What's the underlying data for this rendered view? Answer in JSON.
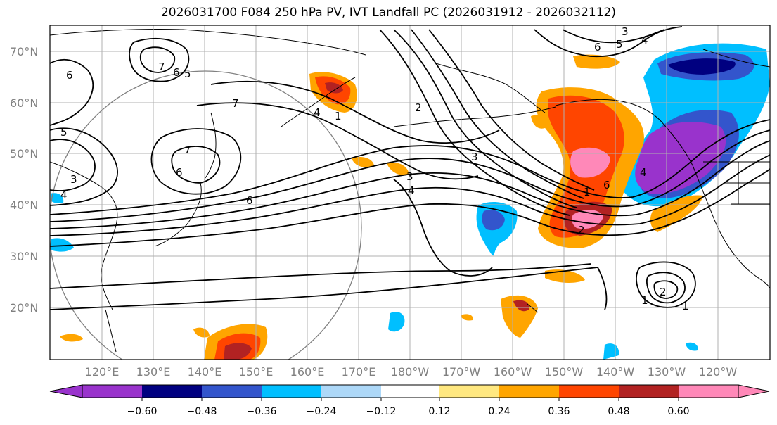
{
  "title": "2026031700 F084 250 hPa PV, IVT Landfall PC (2026031912 - 2026032112)",
  "lat_labels": [
    "70°N",
    "60°N",
    "50°N",
    "40°N",
    "30°N",
    "20°N"
  ],
  "lon_labels": [
    "120°E",
    "130°E",
    "140°E",
    "150°E",
    "160°E",
    "170°E",
    "180°W",
    "170°W",
    "160°W",
    "150°W",
    "140°W",
    "130°W",
    "120°W"
  ],
  "contour_labels": [
    "3",
    "5",
    "4",
    "6",
    "7",
    "6",
    "6",
    "5",
    "7",
    "6",
    "5",
    "3",
    "4",
    "6",
    "7",
    "4",
    "1",
    "2",
    "3",
    "3",
    "4",
    "6",
    "1",
    "2",
    "4",
    "1",
    "2",
    "1"
  ],
  "colorbar": {
    "tick_labels": [
      "−0.60",
      "−0.48",
      "−0.36",
      "−0.24",
      "−0.12",
      "0.12",
      "0.24",
      "0.36",
      "0.48",
      "0.60"
    ],
    "colors": [
      "#9933cc",
      "#000080",
      "#3355cc",
      "#00bfff",
      "#add8f8",
      "#ffffff",
      "#ffe880",
      "#ffa500",
      "#ff4500",
      "#b22222",
      "#ff88b8"
    ]
  }
}
